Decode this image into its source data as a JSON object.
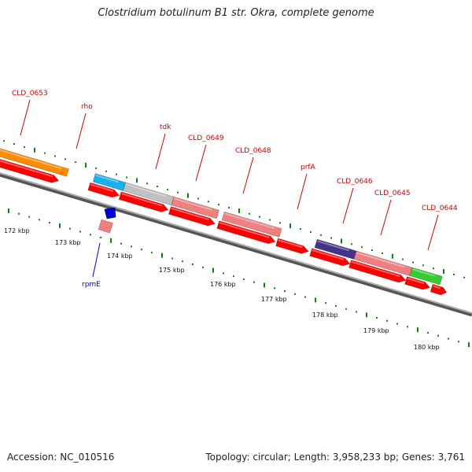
{
  "title": "Clostridium botulinum B1 str. Okra, complete genome",
  "accession": "Accession: NC_010516",
  "summary": "Topology: circular; Length: 3,958,233 bp; Genes: 3,761",
  "colors": {
    "cds": "#ff0000",
    "gene_label": "#cc0000",
    "rpmE_label": "#0000cc",
    "tick": "#1a7a1a",
    "backbone": "#808080"
  },
  "gene_labels": [
    "CLD_0653",
    "rho",
    "tdk",
    "CLD_0649",
    "CLD_0648",
    "prfA",
    "CLD_0646",
    "CLD_0645",
    "CLD_0644"
  ],
  "rpmE_label": "rpmE",
  "kbp_labels": [
    "172 kbp",
    "173 kbp",
    "174 kbp",
    "175 kbp",
    "176 kbp",
    "177 kbp",
    "178 kbp",
    "179 kbp",
    "180 kbp"
  ]
}
